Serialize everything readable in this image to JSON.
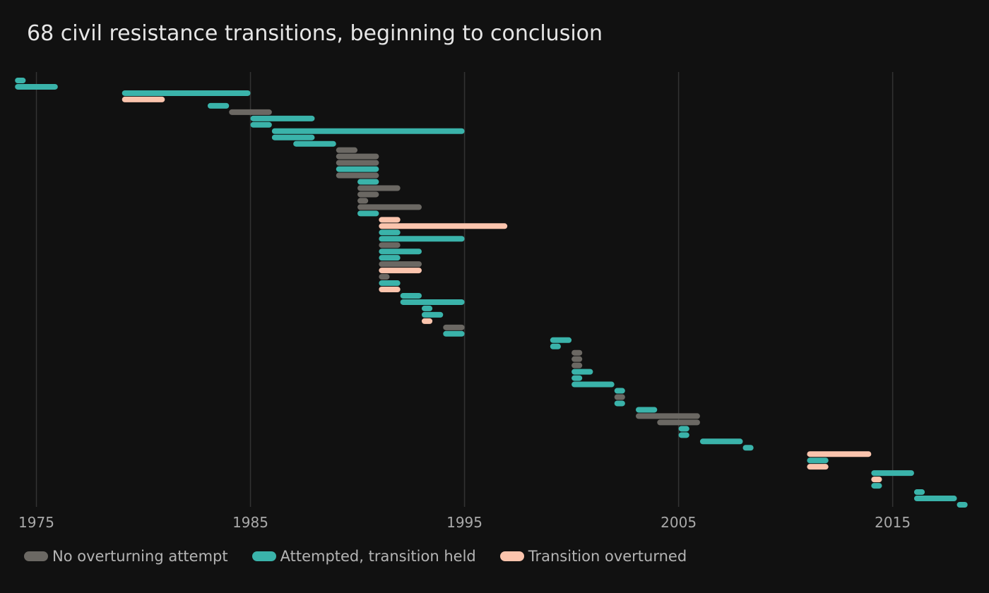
{
  "title": "68 civil resistance transitions, beginning to conclusion",
  "colors": {
    "background": "#111111",
    "grid": "#333333",
    "none": "#6b6863",
    "held": "#3ab3aa",
    "overturned": "#fbc4ad",
    "tick_text": "#a9a9a9"
  },
  "legend": [
    {
      "key": "none",
      "label": "No overturning attempt"
    },
    {
      "key": "held",
      "label": "Attempted, transition held"
    },
    {
      "key": "overturned",
      "label": "Transition overturned"
    }
  ],
  "chart_data": {
    "type": "bar",
    "subtype": "horizontal-range",
    "title": "68 civil resistance transitions, beginning to conclusion",
    "xlabel": "",
    "ylabel": "",
    "xlim": [
      1973.3,
      2019.5
    ],
    "xticks": [
      1975,
      1985,
      1995,
      2005,
      2015
    ],
    "grid": "vertical",
    "legend_position": "bottom-left",
    "categories": [
      "none",
      "held",
      "overturned"
    ],
    "series": [
      {
        "start": 1974.0,
        "end": 1974.5,
        "cat": "held"
      },
      {
        "start": 1974.0,
        "end": 1976.0,
        "cat": "held"
      },
      {
        "start": 1979.0,
        "end": 1985.0,
        "cat": "held"
      },
      {
        "start": 1979.0,
        "end": 1981.0,
        "cat": "overturned"
      },
      {
        "start": 1983.0,
        "end": 1984.0,
        "cat": "held"
      },
      {
        "start": 1984.0,
        "end": 1986.0,
        "cat": "none"
      },
      {
        "start": 1985.0,
        "end": 1988.0,
        "cat": "held"
      },
      {
        "start": 1985.0,
        "end": 1986.0,
        "cat": "held"
      },
      {
        "start": 1986.0,
        "end": 1995.0,
        "cat": "held"
      },
      {
        "start": 1986.0,
        "end": 1988.0,
        "cat": "held"
      },
      {
        "start": 1987.0,
        "end": 1989.0,
        "cat": "held"
      },
      {
        "start": 1989.0,
        "end": 1990.0,
        "cat": "none"
      },
      {
        "start": 1989.0,
        "end": 1991.0,
        "cat": "none"
      },
      {
        "start": 1989.0,
        "end": 1991.0,
        "cat": "none"
      },
      {
        "start": 1989.0,
        "end": 1991.0,
        "cat": "held"
      },
      {
        "start": 1989.0,
        "end": 1991.0,
        "cat": "none"
      },
      {
        "start": 1990.0,
        "end": 1991.0,
        "cat": "held"
      },
      {
        "start": 1990.0,
        "end": 1992.0,
        "cat": "none"
      },
      {
        "start": 1990.0,
        "end": 1991.0,
        "cat": "none"
      },
      {
        "start": 1990.0,
        "end": 1990.5,
        "cat": "none"
      },
      {
        "start": 1990.0,
        "end": 1993.0,
        "cat": "none"
      },
      {
        "start": 1990.0,
        "end": 1991.0,
        "cat": "held"
      },
      {
        "start": 1991.0,
        "end": 1992.0,
        "cat": "overturned"
      },
      {
        "start": 1991.0,
        "end": 1997.0,
        "cat": "overturned"
      },
      {
        "start": 1991.0,
        "end": 1992.0,
        "cat": "held"
      },
      {
        "start": 1991.0,
        "end": 1995.0,
        "cat": "held"
      },
      {
        "start": 1991.0,
        "end": 1992.0,
        "cat": "none"
      },
      {
        "start": 1991.0,
        "end": 1993.0,
        "cat": "held"
      },
      {
        "start": 1991.0,
        "end": 1992.0,
        "cat": "held"
      },
      {
        "start": 1991.0,
        "end": 1993.0,
        "cat": "none"
      },
      {
        "start": 1991.0,
        "end": 1993.0,
        "cat": "overturned"
      },
      {
        "start": 1991.0,
        "end": 1991.5,
        "cat": "none"
      },
      {
        "start": 1991.0,
        "end": 1992.0,
        "cat": "held"
      },
      {
        "start": 1991.0,
        "end": 1992.0,
        "cat": "overturned"
      },
      {
        "start": 1992.0,
        "end": 1993.0,
        "cat": "held"
      },
      {
        "start": 1992.0,
        "end": 1995.0,
        "cat": "held"
      },
      {
        "start": 1993.0,
        "end": 1993.5,
        "cat": "held"
      },
      {
        "start": 1993.0,
        "end": 1994.0,
        "cat": "held"
      },
      {
        "start": 1993.0,
        "end": 1993.5,
        "cat": "overturned"
      },
      {
        "start": 1994.0,
        "end": 1995.0,
        "cat": "none"
      },
      {
        "start": 1994.0,
        "end": 1995.0,
        "cat": "held"
      },
      {
        "start": 1999.0,
        "end": 2000.0,
        "cat": "held"
      },
      {
        "start": 1999.0,
        "end": 1999.5,
        "cat": "held"
      },
      {
        "start": 2000.0,
        "end": 2000.5,
        "cat": "none"
      },
      {
        "start": 2000.0,
        "end": 2000.5,
        "cat": "none"
      },
      {
        "start": 2000.0,
        "end": 2000.5,
        "cat": "none"
      },
      {
        "start": 2000.0,
        "end": 2001.0,
        "cat": "held"
      },
      {
        "start": 2000.0,
        "end": 2000.5,
        "cat": "held"
      },
      {
        "start": 2000.0,
        "end": 2002.0,
        "cat": "held"
      },
      {
        "start": 2002.0,
        "end": 2002.5,
        "cat": "held"
      },
      {
        "start": 2002.0,
        "end": 2002.5,
        "cat": "none"
      },
      {
        "start": 2002.0,
        "end": 2002.5,
        "cat": "held"
      },
      {
        "start": 2003.0,
        "end": 2004.0,
        "cat": "held"
      },
      {
        "start": 2003.0,
        "end": 2006.0,
        "cat": "none"
      },
      {
        "start": 2004.0,
        "end": 2006.0,
        "cat": "none"
      },
      {
        "start": 2005.0,
        "end": 2005.5,
        "cat": "held"
      },
      {
        "start": 2005.0,
        "end": 2005.5,
        "cat": "held"
      },
      {
        "start": 2006.0,
        "end": 2008.0,
        "cat": "held"
      },
      {
        "start": 2008.0,
        "end": 2008.5,
        "cat": "held"
      },
      {
        "start": 2011.0,
        "end": 2014.0,
        "cat": "overturned"
      },
      {
        "start": 2011.0,
        "end": 2012.0,
        "cat": "held"
      },
      {
        "start": 2011.0,
        "end": 2012.0,
        "cat": "overturned"
      },
      {
        "start": 2014.0,
        "end": 2016.0,
        "cat": "held"
      },
      {
        "start": 2014.0,
        "end": 2014.5,
        "cat": "overturned"
      },
      {
        "start": 2014.0,
        "end": 2014.5,
        "cat": "held"
      },
      {
        "start": 2016.0,
        "end": 2016.5,
        "cat": "held"
      },
      {
        "start": 2016.0,
        "end": 2018.0,
        "cat": "held"
      },
      {
        "start": 2018.0,
        "end": 2018.5,
        "cat": "held"
      }
    ]
  }
}
